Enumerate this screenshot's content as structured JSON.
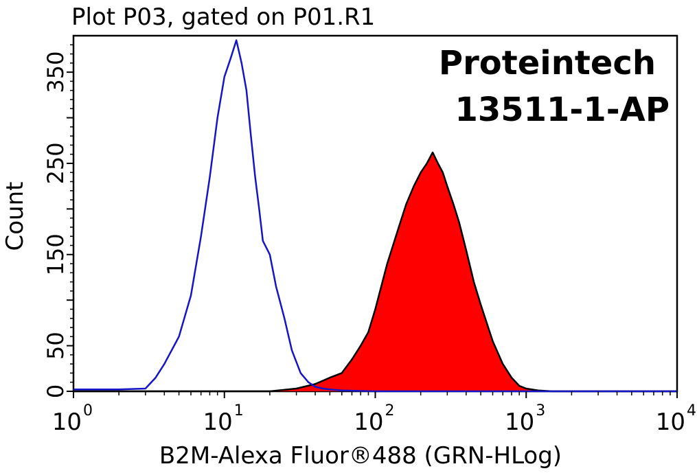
{
  "chart_data": {
    "type": "area",
    "title": "Plot P03, gated on P01.R1",
    "xlabel": "B2M-Alexa Fluor®488 (GRN-HLog)",
    "ylabel": "Count",
    "xscale": "log",
    "xlim": [
      1,
      10000
    ],
    "ylim": [
      0,
      390
    ],
    "x_ticks": [
      {
        "base": "10",
        "exp": "0",
        "value": 1
      },
      {
        "base": "10",
        "exp": "1",
        "value": 10
      },
      {
        "base": "10",
        "exp": "2",
        "value": 100
      },
      {
        "base": "10",
        "exp": "3",
        "value": 1000
      },
      {
        "base": "10",
        "exp": "4",
        "value": 10000
      }
    ],
    "y_ticks": [
      "0",
      "50",
      "150",
      "250",
      "350"
    ],
    "y_tick_values": [
      0,
      50,
      150,
      250,
      350
    ],
    "annotations": [
      "Proteintech",
      "13511-1-AP"
    ],
    "series": [
      {
        "color": "#1414c8",
        "fill": "none",
        "x": [
          1,
          2,
          3,
          3.5,
          4,
          5,
          6,
          7,
          8,
          9,
          10,
          11,
          12,
          13,
          14,
          15,
          16,
          17,
          18,
          20,
          22,
          25,
          28,
          32,
          36,
          40,
          45,
          50,
          60,
          100,
          1000,
          10000
        ],
        "y": [
          2,
          2,
          3,
          15,
          30,
          60,
          105,
          170,
          235,
          300,
          345,
          365,
          385,
          360,
          330,
          280,
          235,
          200,
          165,
          150,
          115,
          80,
          45,
          20,
          10,
          5,
          3,
          2,
          1,
          0,
          0,
          0
        ]
      },
      {
        "color": "#000000",
        "fill": "#ff0000",
        "x": [
          1,
          20,
          30,
          40,
          50,
          60,
          70,
          80,
          90,
          100,
          120,
          140,
          160,
          180,
          200,
          220,
          240,
          260,
          280,
          300,
          330,
          360,
          400,
          450,
          500,
          600,
          700,
          800,
          900,
          1000,
          1200,
          1500,
          10000
        ],
        "y": [
          0,
          0,
          3,
          8,
          15,
          20,
          35,
          50,
          65,
          90,
          140,
          175,
          205,
          225,
          240,
          250,
          262,
          250,
          240,
          225,
          205,
          185,
          155,
          120,
          95,
          55,
          30,
          15,
          6,
          3,
          1,
          0,
          0
        ]
      }
    ]
  }
}
